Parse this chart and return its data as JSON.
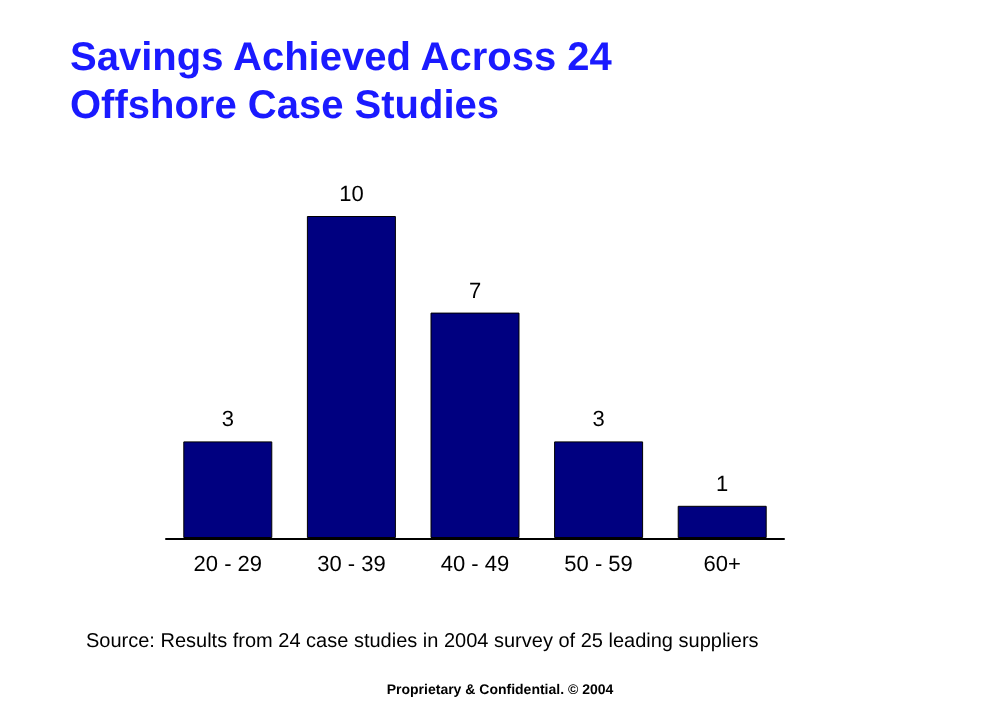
{
  "chart_data": {
    "type": "bar",
    "title": "Savings Achieved Across 24\nOffshore Case Studies",
    "categories": [
      "20 - 29",
      "30 - 39",
      "40 - 49",
      "50 - 59",
      "60+"
    ],
    "values": [
      3,
      10,
      7,
      3,
      1
    ],
    "color": "#000080",
    "data_labels": true,
    "annotations": [
      "Source: Results from 24 case studies in 2004 survey of 25 leading suppliers",
      "Proprietary & Confidential. © 2004"
    ]
  }
}
